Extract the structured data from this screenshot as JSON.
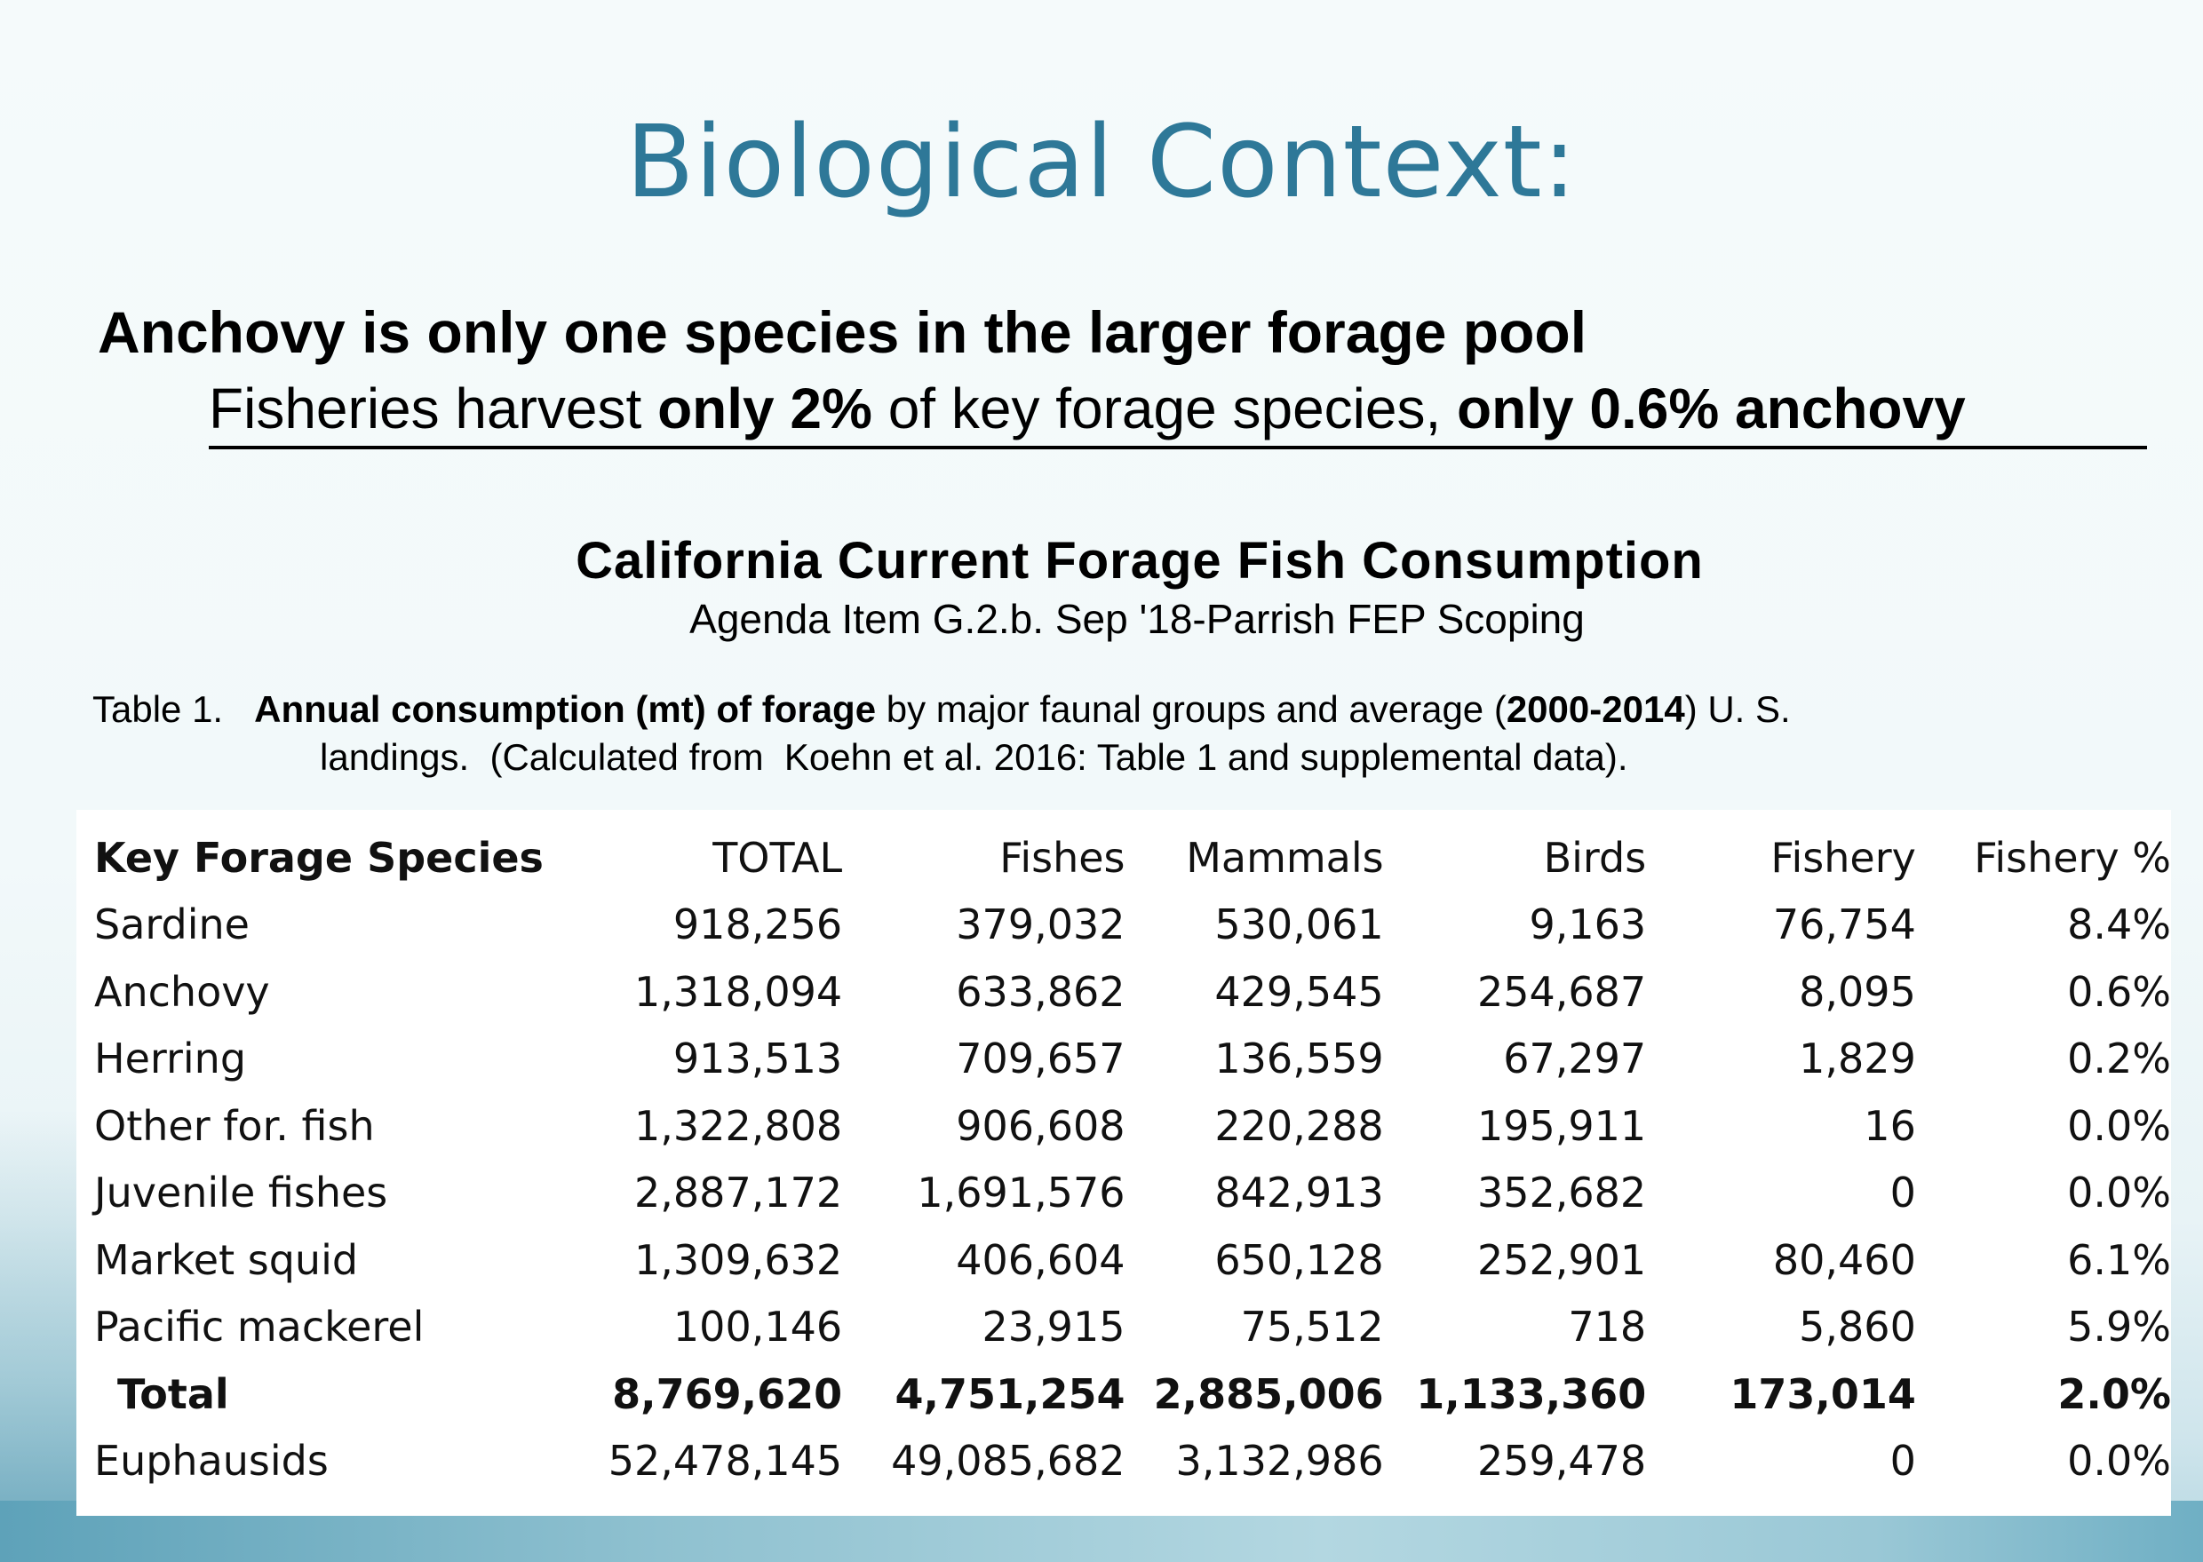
{
  "slide": {
    "title": "Biological Context:",
    "headline": "Anchovy is only one species in the larger forage pool",
    "subline": {
      "part1": "Fisheries harvest ",
      "bold1": "only 2%",
      "part2": " of key forage species, ",
      "bold2": "only 0.6% anchovy"
    },
    "table_heading": "California Current Forage Fish Consumption",
    "agenda": "Agenda Item G.2.b. Sep '18-Parrish FEP Scoping",
    "caption": {
      "prefix": "Table 1.   ",
      "bold1": "Annual consumption (mt) of forage",
      "mid": " by major faunal groups and average (",
      "bold2": "2000-2014",
      "suffix": ") U. S.",
      "line2": "landings.  (Calculated from  Koehn et al. 2016: Table 1 and supplemental data)."
    }
  },
  "table": {
    "headers": [
      "Key Forage Species",
      "TOTAL",
      "Fishes",
      "Mammals",
      "Birds",
      "Fishery",
      "Fishery %"
    ],
    "rows": [
      [
        "Sardine",
        "918,256",
        "379,032",
        "530,061",
        "9,163",
        "76,754",
        "8.4%"
      ],
      [
        "Anchovy",
        "1,318,094",
        "633,862",
        "429,545",
        "254,687",
        "8,095",
        "0.6%"
      ],
      [
        "Herring",
        "913,513",
        "709,657",
        "136,559",
        "67,297",
        "1,829",
        "0.2%"
      ],
      [
        "Other for. fish",
        "1,322,808",
        "906,608",
        "220,288",
        "195,911",
        "16",
        "0.0%"
      ],
      [
        "Juvenile fishes",
        "2,887,172",
        "1,691,576",
        "842,913",
        "352,682",
        "0",
        "0.0%"
      ],
      [
        "Market squid",
        "1,309,632",
        "406,604",
        "650,128",
        "252,901",
        "80,460",
        "6.1%"
      ],
      [
        "Pacific mackerel",
        "100,146",
        "23,915",
        "75,512",
        "718",
        "5,860",
        "5.9%"
      ],
      [
        "Total",
        "8,769,620",
        "4,751,254",
        "2,885,006",
        "1,133,360",
        "173,014",
        "2.0%"
      ],
      [
        "Euphausids",
        "52,478,145",
        "49,085,682",
        "3,132,986",
        "259,478",
        "0",
        "0.0%"
      ]
    ]
  }
}
